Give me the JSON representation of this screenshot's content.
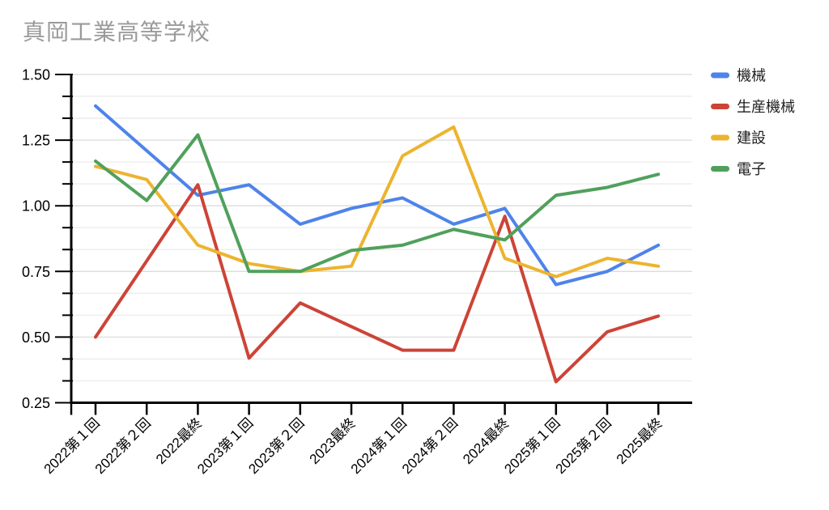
{
  "page": {
    "title": "真岡工業高等学校"
  },
  "chart_data": {
    "type": "line",
    "title": "真岡工業高等学校",
    "title_color": "#9a9a9a",
    "categories": [
      "2022第１回",
      "2022第２回",
      "2022最終",
      "2023第１回",
      "2023第２回",
      "2023最終",
      "2024第１回",
      "2024第２回",
      "2024最終",
      "2025第１回",
      "2025第２回",
      "2025最終"
    ],
    "series": [
      {
        "name": "機械",
        "color": "#4e83ea",
        "values": [
          1.38,
          1.21,
          1.04,
          1.08,
          0.93,
          0.99,
          1.03,
          0.93,
          0.99,
          0.7,
          0.75,
          0.85
        ]
      },
      {
        "name": "生産機械",
        "color": "#cc4437",
        "values": [
          0.5,
          0.79,
          1.08,
          0.42,
          0.63,
          0.54,
          0.45,
          0.45,
          0.96,
          0.33,
          0.52,
          0.58
        ]
      },
      {
        "name": "建設",
        "color": "#ecb42f",
        "values": [
          1.15,
          1.1,
          0.85,
          0.78,
          0.75,
          0.77,
          1.19,
          1.3,
          0.8,
          0.73,
          0.8,
          0.77
        ]
      },
      {
        "name": "電子",
        "color": "#50a05c",
        "values": [
          1.17,
          1.02,
          1.27,
          0.75,
          0.75,
          0.83,
          0.85,
          0.91,
          0.87,
          1.04,
          1.07,
          1.12
        ]
      }
    ],
    "xlabel": "",
    "ylabel": "",
    "ylim": [
      0.25,
      1.5
    ],
    "y_major_ticks": [
      1.5,
      1.25,
      1.0,
      0.75,
      0.5,
      0.25
    ],
    "y_tick_labels": [
      "1.50",
      "1.25",
      "1.00",
      "0.75",
      "0.50",
      "0.25"
    ],
    "y_minor_divisions_per_major": 3,
    "grid": true,
    "grid_minor_color": "#ececec",
    "grid_major_color": "#dcdcdc",
    "axis_color": "#000000",
    "tick_label_color": "#000000",
    "x_label_rotation_deg": -45,
    "legend_position": "right",
    "line_width": 4
  }
}
